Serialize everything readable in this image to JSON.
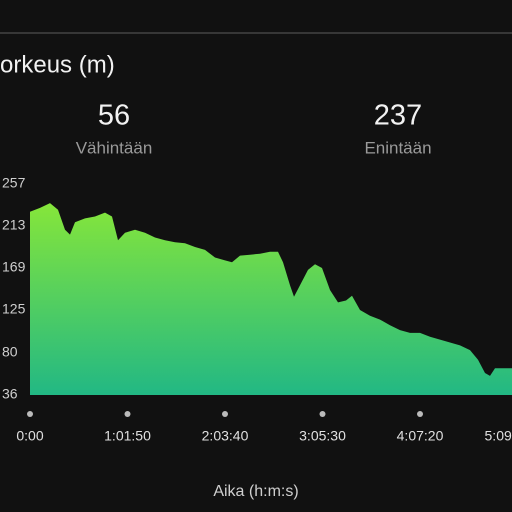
{
  "title": "orkeus (m)",
  "stats": [
    {
      "value": 56,
      "label": "Vähintään"
    },
    {
      "value": 237,
      "label": "Enintään"
    }
  ],
  "chart_data": {
    "type": "area",
    "x_label": "Aika (h:m:s)",
    "x": [
      0,
      381,
      761,
      1065,
      1332,
      1522,
      1712,
      2093,
      2473,
      2854,
      3120,
      3349,
      3615,
      3995,
      4376,
      4756,
      5137,
      5517,
      5898,
      6278,
      6659,
      7039,
      7420,
      7686,
      7991,
      8371,
      8752,
      9132,
      9436,
      9627,
      9893,
      10045,
      10274,
      10578,
      10844,
      11111,
      11415,
      11719,
      12023,
      12252,
      12557,
      12937,
      13318,
      13698,
      14079,
      14459,
      14840,
      15220,
      15601,
      15981,
      16362,
      16742,
      17046,
      17313,
      17503,
      17693,
      18340
    ],
    "values": [
      228,
      232,
      237,
      230,
      209,
      204,
      217,
      221,
      223,
      227,
      223,
      198,
      206,
      209,
      206,
      201,
      198,
      196,
      195,
      191,
      188,
      180,
      177,
      175,
      182,
      183,
      184,
      186,
      186,
      175,
      151,
      139,
      151,
      167,
      173,
      169,
      146,
      133,
      135,
      140,
      125,
      119,
      115,
      109,
      104,
      101,
      101,
      97,
      94,
      91,
      88,
      83,
      73,
      59,
      56,
      64,
      64
    ],
    "xlim": [
      0,
      18340
    ],
    "xticks": [
      {
        "value": 0,
        "label": "0:00"
      },
      {
        "value": 3710,
        "label": "1:01:50"
      },
      {
        "value": 7420,
        "label": "2:03:40"
      },
      {
        "value": 11130,
        "label": "3:05:30"
      },
      {
        "value": 14840,
        "label": "4:07:20"
      },
      {
        "value": 18550,
        "label": "5:09"
      }
    ],
    "ylim": [
      36,
      257
    ],
    "yticks": [
      36,
      80,
      125,
      169,
      213,
      257
    ],
    "color_top": "#86e63a",
    "color_bottom": "#22b884"
  }
}
